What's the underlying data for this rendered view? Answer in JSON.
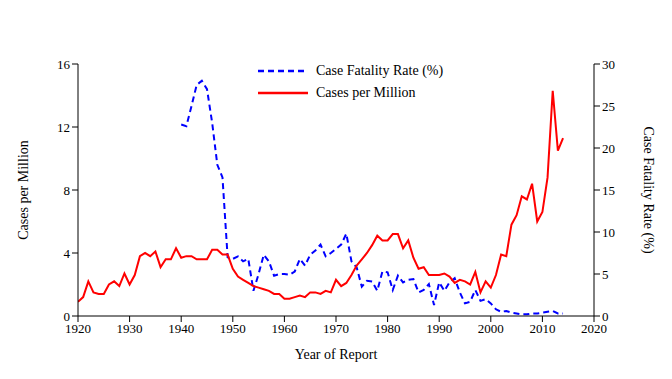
{
  "chart_data": {
    "type": "line",
    "x_label": "Year of Report",
    "y_label": "Cases per Million",
    "y2_label": "Case Fatality Rate (%)",
    "x": [
      1920,
      1921,
      1922,
      1923,
      1924,
      1925,
      1926,
      1927,
      1928,
      1929,
      1930,
      1931,
      1932,
      1933,
      1934,
      1935,
      1936,
      1937,
      1938,
      1939,
      1940,
      1941,
      1942,
      1943,
      1944,
      1945,
      1946,
      1947,
      1948,
      1949,
      1950,
      1951,
      1952,
      1953,
      1954,
      1955,
      1956,
      1957,
      1958,
      1959,
      1960,
      1961,
      1962,
      1963,
      1964,
      1965,
      1966,
      1967,
      1968,
      1969,
      1970,
      1971,
      1972,
      1973,
      1974,
      1975,
      1976,
      1977,
      1978,
      1979,
      1980,
      1981,
      1982,
      1983,
      1984,
      1985,
      1986,
      1987,
      1988,
      1989,
      1990,
      1991,
      1992,
      1993,
      1994,
      1995,
      1996,
      1997,
      1998,
      1999,
      2000,
      2001,
      2002,
      2003,
      2004,
      2005,
      2006,
      2007,
      2008,
      2009,
      2010,
      2011,
      2012,
      2013,
      2014
    ],
    "series": [
      {
        "name": "Case Fatality Rate (%)",
        "color": "#0000ff",
        "line_style": "dashed",
        "axis": "y2",
        "values": [
          null,
          null,
          null,
          null,
          null,
          null,
          null,
          null,
          null,
          null,
          null,
          null,
          null,
          null,
          null,
          null,
          null,
          null,
          null,
          null,
          22.8,
          22.6,
          25,
          27.5,
          28,
          27,
          23,
          18,
          16.5,
          7,
          6.8,
          7.1,
          6.5,
          6.8,
          3,
          5,
          7.3,
          6.5,
          4.8,
          5,
          5,
          4.9,
          5.3,
          6.8,
          6,
          7.3,
          7.8,
          8.5,
          7.1,
          7.5,
          8,
          8.5,
          9.8,
          6.5,
          5.8,
          3.5,
          4.2,
          4.1,
          3,
          5.3,
          5.2,
          3.1,
          4.8,
          4,
          4.3,
          4.4,
          2.8,
          3.1,
          3.8,
          1.3,
          4,
          3,
          4,
          4.5,
          2.8,
          1.5,
          1.7,
          3.1,
          1.8,
          2,
          1.5,
          0.8,
          0.5,
          0.6,
          0.4,
          0.3,
          0.2,
          0.2,
          0.3,
          0.3,
          0.4,
          0.5,
          0.6,
          0.3,
          0.3
        ]
      },
      {
        "name": "Cases per Million",
        "color": "#ff0000",
        "line_style": "solid",
        "values": [
          0.9,
          1.2,
          2.2,
          1.5,
          1.4,
          1.4,
          2,
          2.2,
          1.9,
          2.7,
          2,
          2.6,
          3.8,
          4,
          3.8,
          4.1,
          3.1,
          3.6,
          3.6,
          4.3,
          3.7,
          3.8,
          3.8,
          3.6,
          3.6,
          3.6,
          4.2,
          4.2,
          3.9,
          3.9,
          3,
          2.5,
          2.3,
          2.1,
          1.9,
          1.8,
          1.7,
          1.6,
          1.4,
          1.4,
          1.1,
          1.1,
          1.2,
          1.3,
          1.2,
          1.5,
          1.5,
          1.4,
          1.6,
          1.5,
          2.3,
          1.9,
          2.1,
          2.6,
          3.2,
          3.6,
          4,
          4.5,
          5.1,
          4.8,
          4.8,
          5.2,
          5.2,
          4.3,
          4.8,
          3.7,
          3,
          3.1,
          2.6,
          2.6,
          2.6,
          2.7,
          2.5,
          2.1,
          2.3,
          2.2,
          2,
          2.8,
          1.5,
          2.2,
          1.8,
          2.6,
          3.9,
          3.8,
          5.8,
          6.4,
          7.6,
          7.4,
          8.4,
          6,
          6.6,
          8.8,
          14.3,
          10.5,
          11.3
        ]
      }
    ],
    "xlim": [
      1920,
      2020
    ],
    "xticks": [
      1920,
      1930,
      1940,
      1950,
      1960,
      1970,
      1980,
      1990,
      2000,
      2010,
      2020
    ],
    "ylim": [
      0,
      16
    ],
    "yticks": [
      0,
      4,
      8,
      12,
      16
    ],
    "y2lim": [
      0,
      30
    ],
    "y2ticks": [
      0,
      5,
      10,
      15,
      20,
      25,
      30
    ],
    "legend": "top",
    "grid": false
  }
}
